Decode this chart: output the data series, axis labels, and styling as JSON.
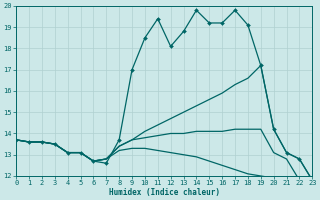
{
  "xlabel": "Humidex (Indice chaleur)",
  "bg_color": "#cce8e8",
  "grid_color": "#b0d0d0",
  "line_color": "#006666",
  "xlim": [
    0,
    23
  ],
  "ylim": [
    12,
    20
  ],
  "x_ticks": [
    0,
    1,
    2,
    3,
    4,
    5,
    6,
    7,
    8,
    9,
    10,
    11,
    12,
    13,
    14,
    15,
    16,
    17,
    18,
    19,
    20,
    21,
    22,
    23
  ],
  "y_ticks": [
    12,
    13,
    14,
    15,
    16,
    17,
    18,
    19,
    20
  ],
  "line1_x": [
    0,
    1,
    2,
    3,
    4,
    5,
    6,
    7,
    8,
    9,
    10,
    11,
    12,
    13,
    14,
    15,
    16,
    17,
    18,
    19,
    20,
    21,
    22,
    23
  ],
  "line1_y": [
    13.7,
    13.6,
    13.6,
    13.5,
    13.1,
    13.1,
    12.7,
    12.6,
    13.7,
    17.0,
    18.5,
    19.4,
    18.1,
    18.8,
    19.8,
    19.2,
    19.2,
    19.8,
    19.1,
    17.2,
    14.2,
    13.1,
    12.8,
    11.8
  ],
  "line2_x": [
    0,
    1,
    2,
    3,
    4,
    5,
    6,
    7,
    8,
    9,
    10,
    11,
    12,
    13,
    14,
    15,
    16,
    17,
    18,
    19,
    20,
    21,
    22,
    23
  ],
  "line2_y": [
    13.7,
    13.6,
    13.6,
    13.5,
    13.1,
    13.1,
    12.7,
    12.8,
    13.4,
    13.7,
    14.1,
    14.4,
    14.7,
    15.0,
    15.3,
    15.6,
    15.9,
    16.3,
    16.6,
    17.2,
    14.2,
    13.1,
    12.8,
    11.8
  ],
  "line3_x": [
    0,
    1,
    2,
    3,
    4,
    5,
    6,
    7,
    8,
    9,
    10,
    11,
    12,
    13,
    14,
    15,
    16,
    17,
    18,
    19,
    20,
    21,
    22,
    23
  ],
  "line3_y": [
    13.7,
    13.6,
    13.6,
    13.5,
    13.1,
    13.1,
    12.7,
    12.8,
    13.4,
    13.7,
    13.8,
    13.9,
    14.0,
    14.0,
    14.1,
    14.1,
    14.1,
    14.2,
    14.2,
    14.2,
    13.1,
    12.8,
    11.8,
    11.8
  ],
  "line4_x": [
    0,
    1,
    2,
    3,
    4,
    5,
    6,
    7,
    8,
    9,
    10,
    11,
    12,
    13,
    14,
    15,
    16,
    17,
    18,
    19,
    20,
    21,
    22,
    23
  ],
  "line4_y": [
    13.7,
    13.6,
    13.6,
    13.5,
    13.1,
    13.1,
    12.7,
    12.8,
    13.2,
    13.3,
    13.3,
    13.2,
    13.1,
    13.0,
    12.9,
    12.7,
    12.5,
    12.3,
    12.1,
    12.0,
    11.9,
    11.9,
    11.9,
    11.8
  ]
}
